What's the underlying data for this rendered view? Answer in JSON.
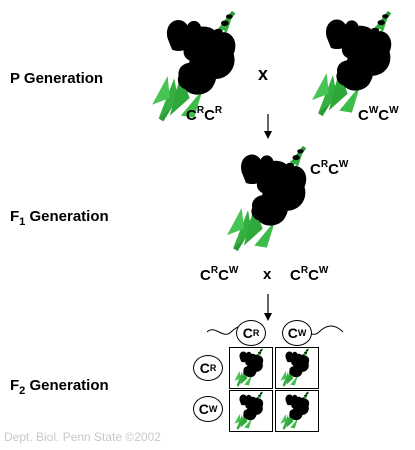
{
  "labels": {
    "p_generation": "P Generation",
    "f1_generation_prefix": "F",
    "f1_generation_sub": "1",
    "f1_generation_suffix": " Generation",
    "f2_generation_prefix": "F",
    "f2_generation_sub": "2",
    "f2_generation_suffix": " Generation"
  },
  "genotypes": {
    "red_parent": {
      "base1": "C",
      "sup1": "R",
      "base2": "C",
      "sup2": "R"
    },
    "white_parent": {
      "base1": "C",
      "sup1": "W",
      "base2": "C",
      "sup2": "W"
    },
    "f1_plant": {
      "base1": "C",
      "sup1": "R",
      "base2": "C",
      "sup2": "W"
    },
    "f1_cross_left": {
      "base1": "C",
      "sup1": "R",
      "base2": "C",
      "sup2": "W"
    },
    "f1_cross_right": {
      "base1": "C",
      "sup1": "R",
      "base2": "C",
      "sup2": "W"
    }
  },
  "cross_symbol": "x",
  "gametes": {
    "top_left": {
      "base": "C",
      "sup": "R"
    },
    "top_right": {
      "base": "C",
      "sup": "W"
    },
    "side_top": {
      "base": "C",
      "sup": "R"
    },
    "side_bottom": {
      "base": "C",
      "sup": "W"
    }
  },
  "colors": {
    "red_flower": "#e8202a",
    "white_flower": "#f4f2e2",
    "pink_flower": "#f07ad0",
    "stem_green": "#2ea83a",
    "credit_gray": "#c8c8c8"
  },
  "icons": {
    "flower": "snapdragon-flower-icon",
    "arrow": "arrow-down-icon"
  },
  "credit": "Dept. Biol. Penn State ©2002"
}
